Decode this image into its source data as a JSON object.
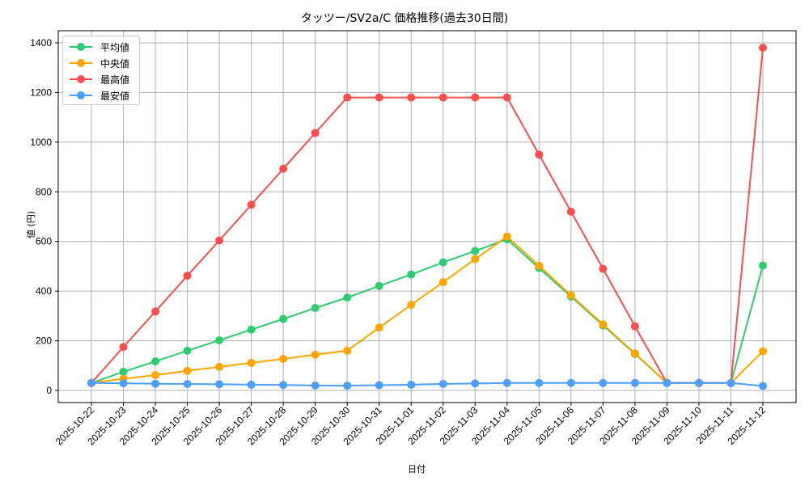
{
  "chart_data": {
    "type": "line",
    "title": "タッツー/SV2a/C 価格推移(過去30日間)",
    "xlabel": "日付",
    "ylabel": "値 (円)",
    "ylim": [
      -50,
      1450
    ],
    "yticks": [
      0,
      200,
      400,
      600,
      800,
      1000,
      1200,
      1400
    ],
    "grid": true,
    "legend_position": "upper left",
    "categories": [
      "2025-10-22",
      "2025-10-23",
      "2025-10-24",
      "2025-10-25",
      "2025-10-26",
      "2025-10-27",
      "2025-10-28",
      "2025-10-29",
      "2025-10-30",
      "2025-10-31",
      "2025-11-01",
      "2025-11-02",
      "2025-11-03",
      "2025-11-04",
      "2025-11-05",
      "2025-11-06",
      "2025-11-07",
      "2025-11-08",
      "2025-11-09",
      "2025-11-10",
      "2025-11-11",
      "2025-11-12"
    ],
    "series": [
      {
        "name": "平均値",
        "color": "#2ecc71",
        "values": [
          30,
          75,
          117,
          160,
          202,
          245,
          288,
          332,
          374,
          421,
          467,
          516,
          562,
          609,
          493,
          378,
          262,
          147,
          30,
          30,
          30,
          503
        ]
      },
      {
        "name": "中央値",
        "color": "#ffa500",
        "values": [
          30,
          47,
          62,
          79,
          95,
          111,
          127,
          144,
          160,
          253,
          345,
          436,
          529,
          620,
          502,
          383,
          266,
          149,
          30,
          30,
          30,
          158
        ]
      },
      {
        "name": "最高値",
        "color": "#ff4d4d",
        "values": [
          30,
          175,
          318,
          462,
          604,
          748,
          893,
          1037,
          1180,
          1180,
          1180,
          1180,
          1180,
          1180,
          950,
          720,
          490,
          258,
          30,
          30,
          30,
          1380
        ]
      },
      {
        "name": "最安値",
        "color": "#4d9fff",
        "values": [
          30,
          29,
          27,
          26,
          25,
          23,
          22,
          20,
          19,
          21,
          23,
          26,
          28,
          30,
          30,
          30,
          30,
          30,
          30,
          30,
          30,
          18
        ]
      }
    ]
  }
}
